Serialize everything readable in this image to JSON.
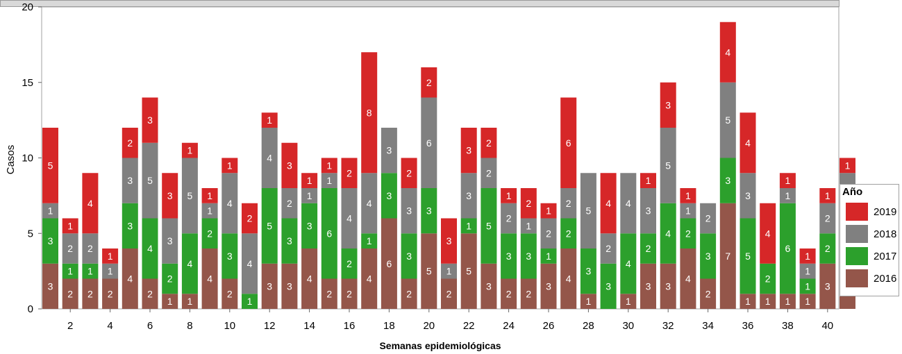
{
  "chart_data": {
    "type": "bar",
    "stacked": true,
    "title": "",
    "xlabel": "Semanas epidemiológicas",
    "ylabel": "Casos",
    "ylim": [
      0,
      20
    ],
    "yticks": [
      0,
      5,
      10,
      15,
      20
    ],
    "xticks": [
      2,
      4,
      6,
      8,
      10,
      12,
      14,
      16,
      18,
      20,
      22,
      24,
      26,
      28,
      30,
      32,
      34,
      36,
      38,
      40
    ],
    "categories": [
      1,
      2,
      3,
      4,
      5,
      6,
      7,
      8,
      9,
      10,
      11,
      12,
      13,
      14,
      15,
      16,
      17,
      18,
      19,
      20,
      21,
      22,
      23,
      24,
      25,
      26,
      27,
      28,
      29,
      30,
      31,
      32,
      33,
      34,
      35,
      36,
      37,
      38,
      39,
      40,
      41
    ],
    "legend_title": "Año",
    "legend_position": "right",
    "series": [
      {
        "name": "2016",
        "color": "#94564a",
        "values": [
          3,
          2,
          2,
          2,
          4,
          2,
          1,
          1,
          4,
          2,
          0,
          3,
          3,
          4,
          2,
          2,
          4,
          6,
          2,
          5,
          2,
          5,
          3,
          2,
          2,
          3,
          4,
          1,
          0,
          1,
          3,
          3,
          4,
          2,
          7,
          1,
          1,
          1,
          1,
          3,
          3
        ]
      },
      {
        "name": "2017",
        "color": "#2ca02c",
        "values": [
          3,
          1,
          1,
          0,
          3,
          4,
          2,
          4,
          2,
          3,
          1,
          5,
          3,
          3,
          6,
          2,
          1,
          3,
          3,
          3,
          0,
          1,
          5,
          3,
          3,
          1,
          2,
          3,
          3,
          4,
          2,
          4,
          2,
          3,
          3,
          5,
          2,
          6,
          1,
          2,
          3
        ]
      },
      {
        "name": "2018",
        "color": "#808080",
        "values": [
          1,
          2,
          2,
          1,
          3,
          5,
          3,
          5,
          1,
          4,
          4,
          4,
          2,
          1,
          1,
          4,
          4,
          3,
          3,
          6,
          1,
          3,
          2,
          2,
          1,
          2,
          2,
          5,
          2,
          4,
          3,
          5,
          1,
          2,
          5,
          3,
          0,
          1,
          1,
          2,
          3
        ]
      },
      {
        "name": "2019",
        "color": "#d62728",
        "values": [
          5,
          1,
          4,
          1,
          2,
          3,
          3,
          1,
          1,
          1,
          2,
          1,
          3,
          1,
          1,
          2,
          8,
          0,
          2,
          2,
          3,
          3,
          2,
          1,
          2,
          1,
          6,
          0,
          4,
          0,
          1,
          3,
          1,
          0,
          4,
          4,
          4,
          1,
          1,
          1,
          1
        ]
      }
    ]
  }
}
